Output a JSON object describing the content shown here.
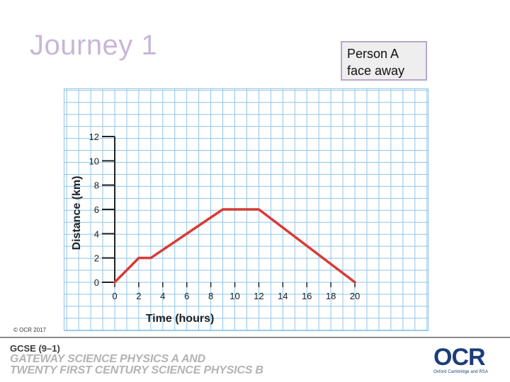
{
  "slide": {
    "title": "Journey 1",
    "note_lines": [
      "Person A",
      "face away"
    ],
    "copyright": "© OCR 2017"
  },
  "footer": {
    "gcse": "GCSE (9–1)",
    "line1": "GATEWAY SCIENCE PHYSICS A AND",
    "line2": "TWENTY FIRST CENTURY SCIENCE PHYSICS B",
    "logo_word": "OCR",
    "logo_sub": "Oxford Cambridge and RSA"
  },
  "colors": {
    "grid": "#8fc5e8",
    "line": "#d93a36",
    "axis": "#222222",
    "title": "#c9b6d8"
  },
  "chart_data": {
    "type": "line",
    "xlabel": "Time (hours)",
    "ylabel": "Distance (km)",
    "xlim": [
      0,
      20
    ],
    "ylim": [
      0,
      12
    ],
    "x_ticks": [
      0,
      2,
      4,
      6,
      8,
      10,
      12,
      14,
      16,
      18,
      20
    ],
    "y_ticks": [
      0,
      2,
      4,
      6,
      8,
      10,
      12
    ],
    "grid": true,
    "series": [
      {
        "x": [
          0,
          2,
          3,
          9,
          12,
          20
        ],
        "y": [
          0,
          2,
          2,
          6,
          6,
          0
        ]
      }
    ]
  }
}
